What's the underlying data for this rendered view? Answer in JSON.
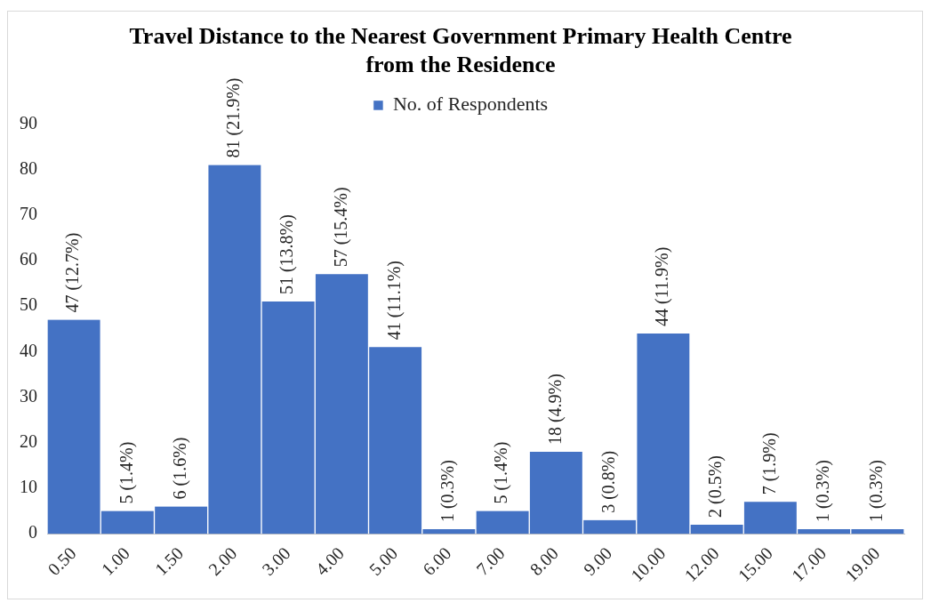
{
  "chart_data": {
    "type": "bar",
    "title": "Travel Distance to the Nearest Government Primary Health Centre from the Residence",
    "categories": [
      "0.50",
      "1.00",
      "1.50",
      "2.00",
      "3.00",
      "4.00",
      "5.00",
      "6.00",
      "7.00",
      "8.00",
      "9.00",
      "10.00",
      "12.00",
      "15.00",
      "17.00",
      "19.00"
    ],
    "series": [
      {
        "name": "No. of Respondents",
        "color": "#4472c4",
        "values": [
          47,
          5,
          6,
          81,
          51,
          57,
          41,
          1,
          5,
          18,
          3,
          44,
          2,
          7,
          1,
          1
        ],
        "value_labels": [
          "47 (12.7%)",
          "5 (1.4%)",
          "6 (1.6%)",
          "81 (21.9%)",
          "51 (13.8%)",
          "57 (15.4%)",
          "41 (11.1%)",
          "1 (0.3%)",
          "5 (1.4%)",
          "18 (4.9%)",
          "3 (0.8%)",
          "44 (11.9%)",
          "2 (0.5%)",
          "7 (1.9%)",
          "1 (0.3%)",
          "1 (0.3%)"
        ]
      }
    ],
    "ylim": [
      0,
      90
    ],
    "yticks": [
      0,
      10,
      20,
      30,
      40,
      50,
      60,
      70,
      80,
      90
    ],
    "grid": false,
    "legend": "top"
  }
}
